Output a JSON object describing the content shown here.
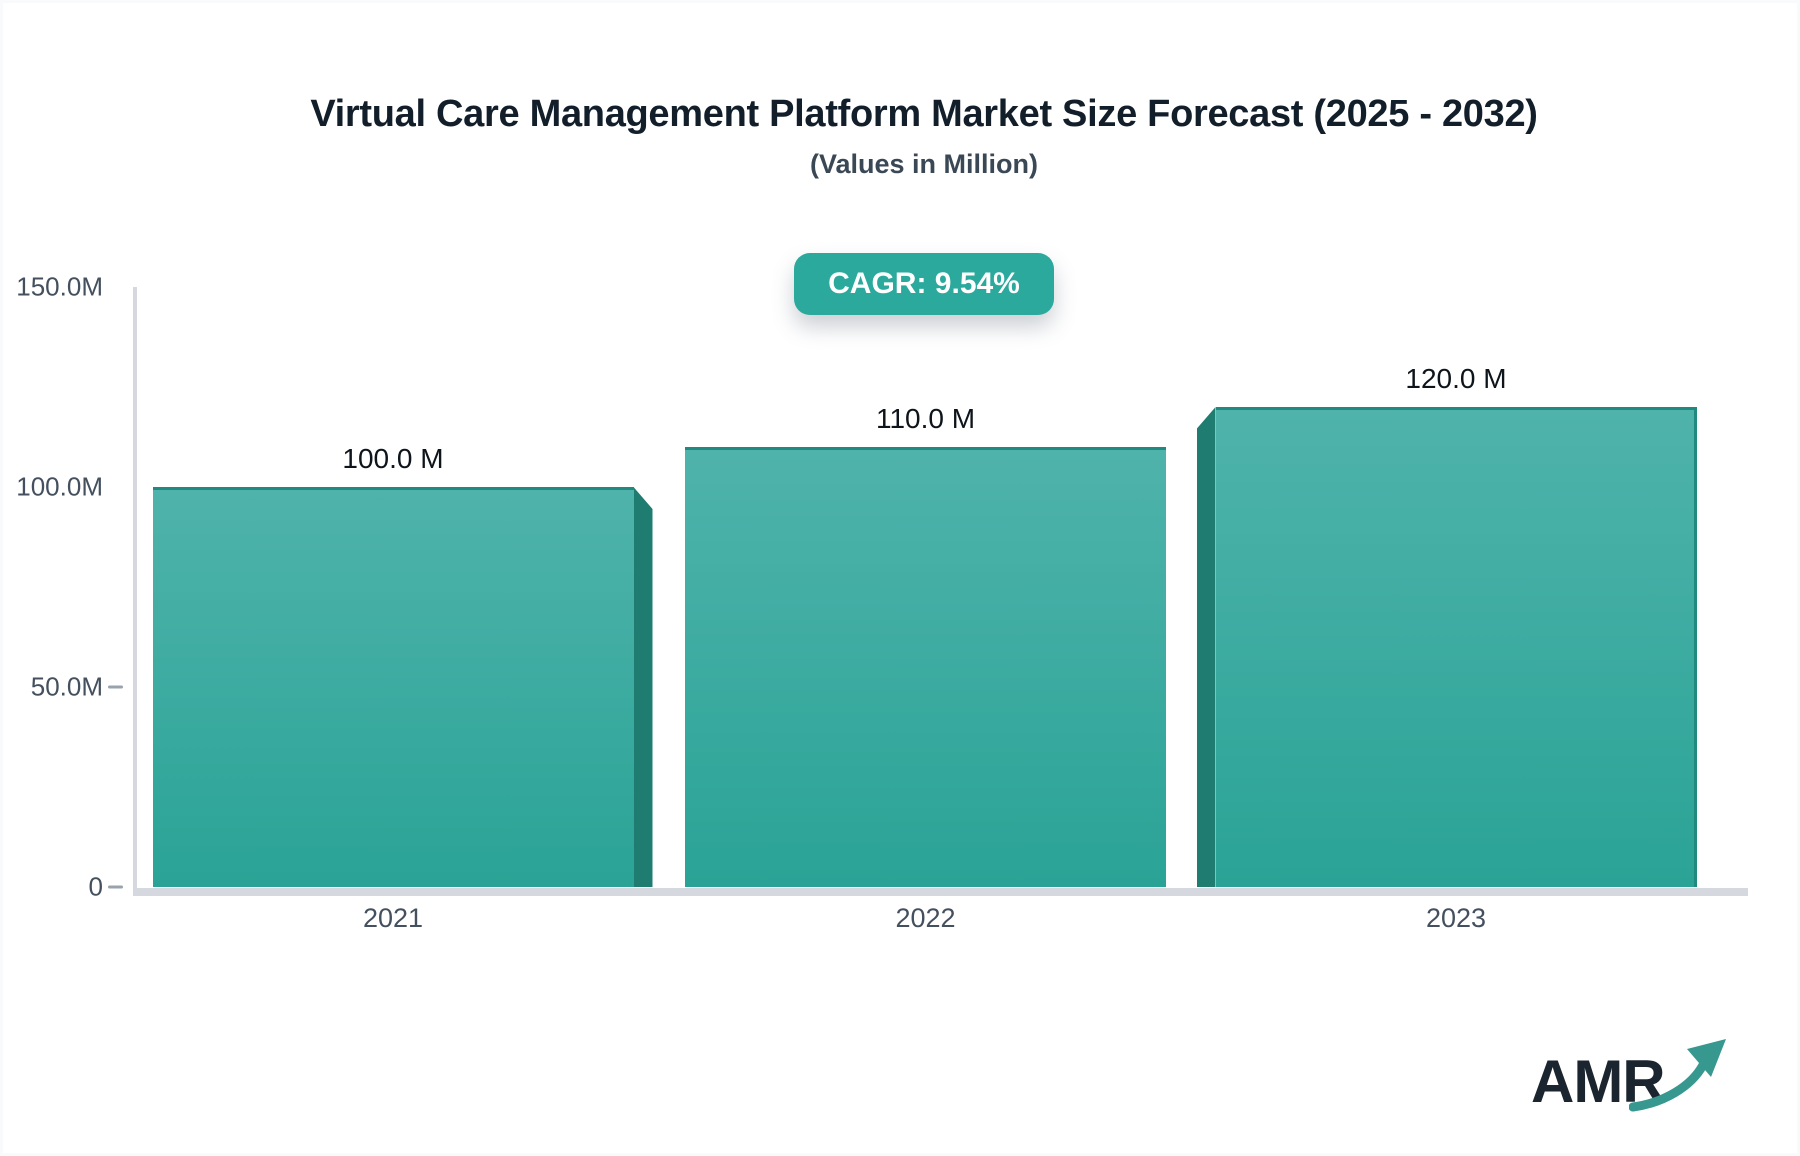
{
  "header": {
    "title": "Virtual Care Management Platform Market Size Forecast (2025 - 2032)",
    "subtitle": "(Values in Million)",
    "cagr_label": "CAGR: 9.54%"
  },
  "chart_data": {
    "type": "bar",
    "title": "Virtual Care Management Platform Market Size Forecast (2025 - 2032)",
    "subtitle": "(Values in Million)",
    "annotation": "CAGR: 9.54%",
    "unit": "Million",
    "categories": [
      "2021",
      "2022",
      "2023"
    ],
    "values": [
      100.0,
      110.0,
      120.0
    ],
    "value_labels": [
      "100.0 M",
      "110.0 M",
      "120.0 M"
    ],
    "xlabel": "",
    "ylabel": "",
    "ylim": [
      0,
      150
    ],
    "yticks": [
      {
        "label": "150.0M",
        "value": 150,
        "dash": false
      },
      {
        "label": "100.0M",
        "value": 100,
        "dash": false
      },
      {
        "label": "50.0M",
        "value": 50,
        "dash": true
      },
      {
        "label": "0",
        "value": 0,
        "dash": true
      }
    ],
    "grid": false,
    "legend": "none",
    "colors": {
      "bar_top": "#4fb3ab",
      "bar_bottom": "#2aa396",
      "bar_edge": "#1f8a7d",
      "bar_side": "#1e7c71",
      "accent": "#2aa99c",
      "axis_line": "#d5d9df",
      "tick_text": "#44505e",
      "title_text": "#121e2a",
      "label_text": "#0d141b"
    }
  },
  "logo": {
    "text": "AMR",
    "icon": "growth-arrow-icon",
    "text_color": "#1b2530",
    "arrow_color": "#37988f"
  }
}
